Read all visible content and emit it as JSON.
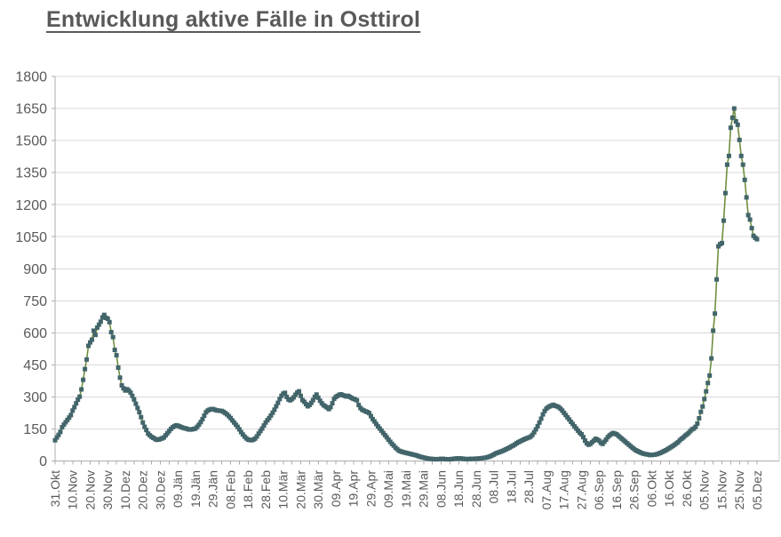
{
  "title": "Entwicklung aktive Fälle in Osttirol",
  "colors": {
    "title_text": "#595959",
    "axis_text": "#595959",
    "gridline": "#d9d9d9",
    "axis_line": "#adadad",
    "side_border": "#c9c9c9",
    "series_line": "#6f8f3f",
    "series_marker": "#42656a",
    "background": "#ffffff"
  },
  "chart_data": {
    "type": "line",
    "title": "Entwicklung aktive Fälle in Osttirol",
    "xlabel": "",
    "ylabel": "",
    "ylim": [
      0,
      1800
    ],
    "y_ticks": [
      0,
      150,
      300,
      450,
      600,
      750,
      900,
      1050,
      1200,
      1350,
      1500,
      1650,
      1800
    ],
    "grid": "horizontal",
    "legend": "none",
    "marker": "square",
    "x_tick_interval_days": 10,
    "minor_tick_interval_days": 5,
    "x_tick_labels": [
      "31.Okt",
      "10.Nov",
      "20.Nov",
      "30.Nov",
      "10.Dez",
      "20.Dez",
      "30.Dez",
      "09.Jän",
      "19.Jän",
      "29.Jän",
      "08.Feb",
      "18.Feb",
      "28.Feb",
      "10.Mär",
      "20.Mär",
      "30.Mär",
      "09.Apr",
      "19.Apr",
      "29.Apr",
      "09.Mai",
      "19.Mai",
      "29.Mai",
      "08.Jun",
      "18.Jun",
      "28.Jun",
      "08.Jul",
      "18.Jul",
      "28.Jul",
      "07.Aug",
      "17.Aug",
      "27.Aug",
      "06.Sep",
      "16.Sep",
      "26.Sep",
      "06.Okt",
      "16.Okt",
      "26.Okt",
      "05.Nov",
      "15.Nov",
      "25.Nov",
      "05.Dez"
    ],
    "series": [
      {
        "name": "aktive Fälle",
        "values": [
          97,
          110,
          122,
          136,
          158,
          170,
          181,
          192,
          203,
          215,
          236,
          252,
          270,
          287,
          301,
          335,
          380,
          430,
          475,
          539,
          555,
          568,
          610,
          590,
          624,
          638,
          652,
          672,
          684,
          670,
          666,
          650,
          603,
          580,
          520,
          495,
          437,
          390,
          354,
          340,
          330,
          336,
          330,
          320,
          305,
          288,
          268,
          248,
          228,
          205,
          180,
          160,
          145,
          128,
          120,
          113,
          108,
          103,
          99,
          100,
          103,
          106,
          110,
          120,
          130,
          140,
          150,
          158,
          163,
          167,
          165,
          162,
          158,
          155,
          153,
          151,
          148,
          147,
          148,
          150,
          152,
          160,
          170,
          182,
          196,
          212,
          228,
          236,
          240,
          243,
          243,
          240,
          237,
          236,
          235,
          234,
          230,
          224,
          218,
          210,
          201,
          190,
          180,
          170,
          160,
          148,
          135,
          124,
          114,
          106,
          100,
          98,
          97,
          100,
          105,
          115,
          128,
          140,
          152,
          166,
          180,
          191,
          201,
          213,
          226,
          240,
          256,
          272,
          290,
          305,
          315,
          319,
          300,
          288,
          284,
          290,
          298,
          310,
          320,
          326,
          305,
          285,
          277,
          266,
          256,
          262,
          272,
          285,
          300,
          311,
          296,
          282,
          270,
          261,
          256,
          250,
          243,
          252,
          270,
          291,
          300,
          305,
          310,
          312,
          308,
          305,
          302,
          305,
          300,
          295,
          291,
          288,
          284,
          262,
          248,
          240,
          236,
          232,
          229,
          224,
          210,
          196,
          185,
          173,
          162,
          152,
          142,
          131,
          121,
          111,
          100,
          90,
          80,
          72,
          62,
          55,
          48,
          45,
          42,
          40,
          38,
          36,
          34,
          32,
          30,
          28,
          26,
          23,
          20,
          18,
          16,
          14,
          12,
          11,
          10,
          9,
          9,
          8,
          8,
          9,
          10,
          10,
          9,
          8,
          8,
          8,
          9,
          10,
          11,
          12,
          12,
          12,
          11,
          10,
          9,
          9,
          9,
          10,
          10,
          10,
          11,
          11,
          12,
          13,
          14,
          15,
          17,
          19,
          22,
          26,
          30,
          35,
          38,
          41,
          44,
          47,
          51,
          55,
          59,
          63,
          68,
          72,
          77,
          83,
          88,
          92,
          96,
          100,
          104,
          107,
          110,
          114,
          122,
          134,
          148,
          163,
          180,
          198,
          218,
          234,
          245,
          252,
          256,
          260,
          263,
          258,
          256,
          252,
          245,
          236,
          225,
          215,
          204,
          194,
          183,
          173,
          162,
          152,
          142,
          132,
          125,
          112,
          95,
          83,
          76,
          80,
          88,
          95,
          104,
          100,
          95,
          85,
          80,
          90,
          100,
          112,
          120,
          126,
          131,
          128,
          125,
          118,
          111,
          104,
          97,
          90,
          83,
          76,
          69,
          62,
          56,
          50,
          46,
          42,
          38,
          35,
          33,
          31,
          30,
          28,
          28,
          29,
          30,
          32,
          35,
          38,
          42,
          46,
          50,
          55,
          60,
          65,
          70,
          76,
          82,
          88,
          97,
          104,
          110,
          118,
          124,
          131,
          140,
          148,
          152,
          160,
          175,
          200,
          230,
          255,
          290,
          326,
          365,
          400,
          480,
          610,
          690,
          850,
          1005,
          1015,
          1020,
          1125,
          1254,
          1387,
          1428,
          1560,
          1607,
          1650,
          1590,
          1574,
          1503,
          1428,
          1387,
          1316,
          1234,
          1151,
          1130,
          1090,
          1054,
          1045,
          1038
        ]
      }
    ]
  }
}
